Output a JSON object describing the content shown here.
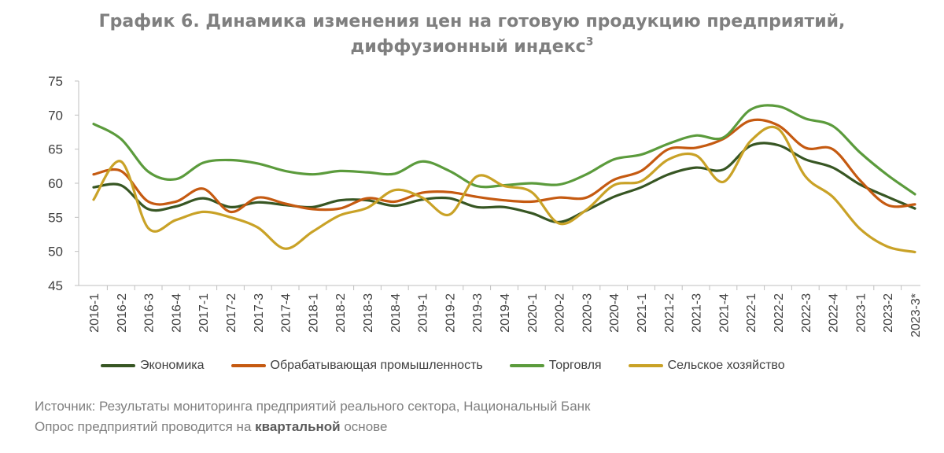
{
  "title": {
    "line1": "График 6. Динамика изменения цен на готовую продукцию предприятий,",
    "line2": "диффузионный индекс",
    "footnote_mark": "3"
  },
  "colors": {
    "economy": "#375623",
    "manufacturing": "#c55a11",
    "trade": "#5b9b3c",
    "agriculture": "#c9a227",
    "axis_text": "#404040",
    "gridline": "#d9d9d9"
  },
  "chart_data": {
    "type": "line",
    "categories": [
      "2016-1",
      "2016-2",
      "2016-3",
      "2016-4",
      "2017-1",
      "2017-2",
      "2017-3",
      "2017-4",
      "2018-1",
      "2018-2",
      "2018-3",
      "2018-4",
      "2019-1",
      "2019-2",
      "2019-3",
      "2019-4",
      "2020-1",
      "2020-2",
      "2020-3",
      "2020-4",
      "2021-1",
      "2021-2",
      "2021-3",
      "2021-4",
      "2022-1",
      "2022-2",
      "2022-3",
      "2022-4",
      "2023-1",
      "2023-2",
      "2023-3*"
    ],
    "y_ticks": [
      "45",
      "50",
      "55",
      "60",
      "65",
      "70",
      "75"
    ],
    "ylim": [
      45,
      75
    ],
    "grid": false,
    "legend_position": "bottom",
    "series": [
      {
        "name": "Экономика",
        "color_key": "economy",
        "values": [
          59.4,
          59.7,
          56.2,
          56.6,
          57.8,
          56.5,
          57.2,
          56.8,
          56.5,
          57.5,
          57.5,
          56.7,
          57.6,
          57.8,
          56.5,
          56.5,
          55.6,
          54.3,
          56.0,
          58.0,
          59.4,
          61.3,
          62.3,
          62.0,
          65.5,
          65.6,
          63.5,
          62.3,
          59.8,
          58.0,
          56.3
        ]
      },
      {
        "name": "Обрабатывающая промышленность",
        "color_key": "manufacturing",
        "values": [
          61.3,
          61.8,
          57.3,
          57.3,
          59.2,
          55.8,
          57.9,
          57.0,
          56.2,
          56.3,
          57.8,
          57.3,
          58.6,
          58.7,
          58.0,
          57.5,
          57.3,
          57.9,
          57.9,
          60.5,
          61.8,
          65.0,
          65.2,
          66.5,
          69.2,
          68.5,
          65.2,
          65.0,
          60.4,
          56.8,
          56.9
        ]
      },
      {
        "name": "Торговля",
        "color_key": "trade",
        "values": [
          68.7,
          66.5,
          61.7,
          60.6,
          63.0,
          63.4,
          62.9,
          61.8,
          61.3,
          61.8,
          61.6,
          61.4,
          63.2,
          61.8,
          59.6,
          59.7,
          60.0,
          59.8,
          61.3,
          63.5,
          64.2,
          65.8,
          67.0,
          66.7,
          70.8,
          71.3,
          69.5,
          68.4,
          64.5,
          61.2,
          58.4
        ]
      },
      {
        "name": "Сельское хозяйство",
        "color_key": "agriculture",
        "values": [
          57.6,
          63.2,
          53.4,
          54.6,
          55.8,
          55.0,
          53.5,
          50.4,
          52.9,
          55.3,
          56.4,
          59.0,
          57.9,
          55.4,
          61.0,
          59.6,
          58.7,
          54.1,
          56.1,
          59.7,
          60.3,
          63.5,
          64.1,
          60.2,
          66.2,
          68.0,
          61.0,
          58.0,
          53.3,
          50.7,
          49.9
        ]
      }
    ]
  },
  "source": {
    "line1": "Источник: Результаты мониторинга предприятий реального сектора, Национальный Банк",
    "line2_prefix": "Опрос предприятий проводится на ",
    "line2_bold": "квартальной",
    "line2_suffix": " основе"
  }
}
